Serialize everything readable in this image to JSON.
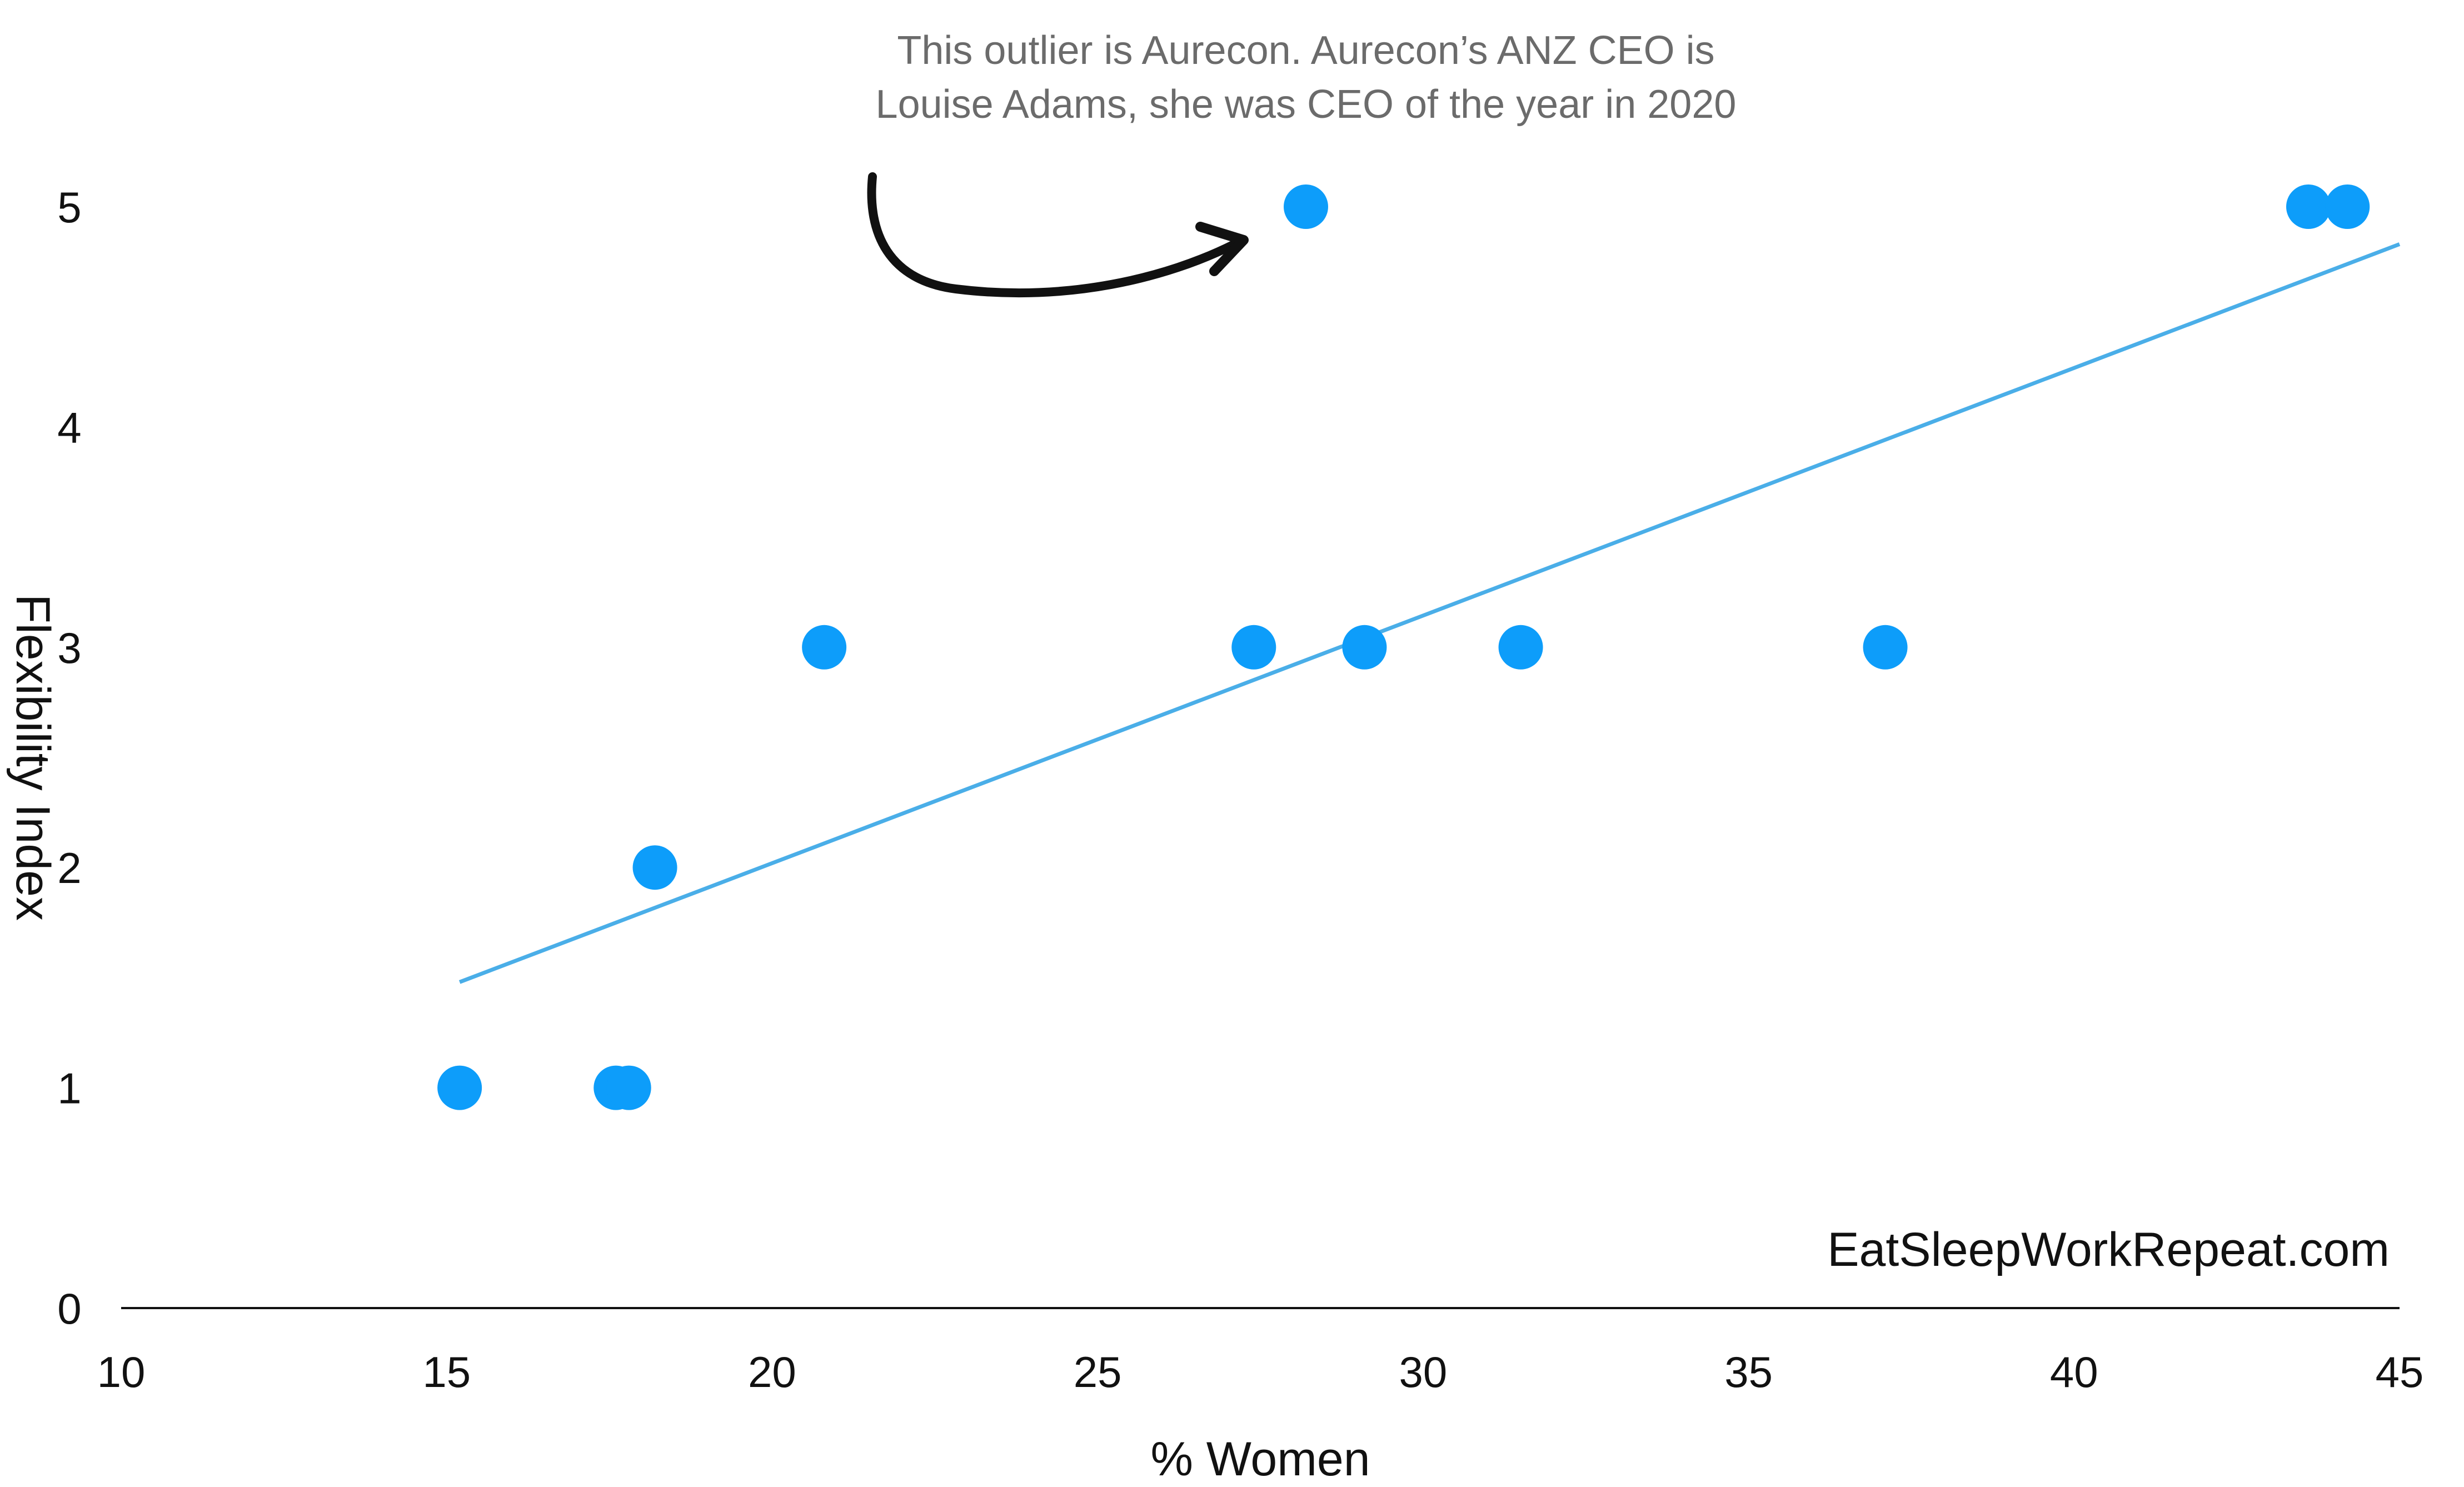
{
  "chart_data": {
    "type": "scatter",
    "title": "",
    "xlabel": "% Women",
    "ylabel": "Flexibility Index",
    "xlim": [
      10,
      45
    ],
    "ylim": [
      0,
      5
    ],
    "x_ticks": [
      "10",
      "15",
      "20",
      "25",
      "30",
      "35",
      "40",
      "45"
    ],
    "y_ticks": [
      "0",
      "1",
      "2",
      "3",
      "4",
      "5"
    ],
    "grid": false,
    "points": [
      {
        "x": 15.2,
        "y": 1
      },
      {
        "x": 17.6,
        "y": 1
      },
      {
        "x": 17.8,
        "y": 1
      },
      {
        "x": 18.2,
        "y": 2
      },
      {
        "x": 20.8,
        "y": 3
      },
      {
        "x": 27.4,
        "y": 3
      },
      {
        "x": 28.2,
        "y": 5
      },
      {
        "x": 29.1,
        "y": 3
      },
      {
        "x": 31.5,
        "y": 3
      },
      {
        "x": 37.1,
        "y": 3
      },
      {
        "x": 43.6,
        "y": 5
      },
      {
        "x": 44.2,
        "y": 5
      }
    ],
    "trendline": {
      "x": [
        15.2,
        45
      ],
      "y": [
        1.48,
        4.83
      ],
      "color": "#4aaee8"
    },
    "point_color": "#0d9dfa",
    "annotation": {
      "lines": [
        "This outlier is Aurecon. Aurecon’s ANZ CEO is",
        "Louise Adams, she was CEO of the year in 2020"
      ]
    },
    "watermark": "EatSleepWorkRepeat.com"
  }
}
